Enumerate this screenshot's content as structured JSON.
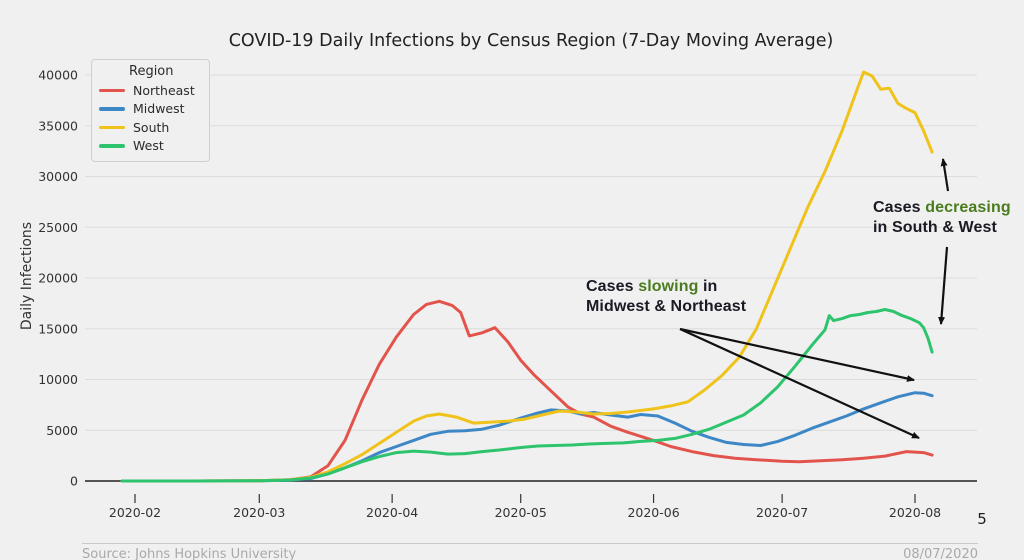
{
  "chart_data": {
    "type": "line",
    "title": "COVID-19 Daily Infections by Census Region (7-Day Moving Average)",
    "xlabel": "",
    "ylabel": "Daily Infections",
    "ylim": [
      0,
      41000
    ],
    "grid": true,
    "legend_position": "upper left",
    "legend_title": "Region",
    "x_tick_labels": [
      "2020-02",
      "2020-03",
      "2020-04",
      "2020-05",
      "2020-06",
      "2020-07",
      "2020-08"
    ],
    "y_ticks": [
      0,
      5000,
      10000,
      15000,
      20000,
      25000,
      30000,
      35000,
      40000
    ],
    "series": [
      {
        "name": "Northeast",
        "color": "#e2544b",
        "points": [
          [
            "2020-01-29",
            0
          ],
          [
            "2020-02-15",
            0
          ],
          [
            "2020-03-01",
            30
          ],
          [
            "2020-03-08",
            120
          ],
          [
            "2020-03-13",
            400
          ],
          [
            "2020-03-17",
            1500
          ],
          [
            "2020-03-21",
            4000
          ],
          [
            "2020-03-25",
            8000
          ],
          [
            "2020-03-29",
            11500
          ],
          [
            "2020-04-02",
            14200
          ],
          [
            "2020-04-06",
            16400
          ],
          [
            "2020-04-09",
            17400
          ],
          [
            "2020-04-12",
            17700
          ],
          [
            "2020-04-15",
            17300
          ],
          [
            "2020-04-17",
            16600
          ],
          [
            "2020-04-19",
            14300
          ],
          [
            "2020-04-22",
            14600
          ],
          [
            "2020-04-25",
            15100
          ],
          [
            "2020-04-28",
            13700
          ],
          [
            "2020-05-01",
            11900
          ],
          [
            "2020-05-04",
            10500
          ],
          [
            "2020-05-08",
            8900
          ],
          [
            "2020-05-12",
            7300
          ],
          [
            "2020-05-15",
            6600
          ],
          [
            "2020-05-18",
            6300
          ],
          [
            "2020-05-22",
            5400
          ],
          [
            "2020-05-26",
            4800
          ],
          [
            "2020-06-01",
            4000
          ],
          [
            "2020-06-05",
            3400
          ],
          [
            "2020-06-10",
            2900
          ],
          [
            "2020-06-15",
            2500
          ],
          [
            "2020-06-20",
            2250
          ],
          [
            "2020-06-25",
            2100
          ],
          [
            "2020-07-01",
            1950
          ],
          [
            "2020-07-05",
            1900
          ],
          [
            "2020-07-10",
            2000
          ],
          [
            "2020-07-15",
            2100
          ],
          [
            "2020-07-20",
            2250
          ],
          [
            "2020-07-25",
            2450
          ],
          [
            "2020-07-30",
            2900
          ],
          [
            "2020-08-03",
            2800
          ],
          [
            "2020-08-05",
            2550
          ]
        ]
      },
      {
        "name": "Midwest",
        "color": "#3e87c6",
        "points": [
          [
            "2020-01-29",
            0
          ],
          [
            "2020-02-15",
            0
          ],
          [
            "2020-03-01",
            20
          ],
          [
            "2020-03-08",
            80
          ],
          [
            "2020-03-13",
            250
          ],
          [
            "2020-03-17",
            700
          ],
          [
            "2020-03-21",
            1300
          ],
          [
            "2020-03-25",
            2000
          ],
          [
            "2020-03-29",
            2800
          ],
          [
            "2020-04-02",
            3400
          ],
          [
            "2020-04-06",
            4000
          ],
          [
            "2020-04-10",
            4600
          ],
          [
            "2020-04-14",
            4900
          ],
          [
            "2020-04-18",
            4950
          ],
          [
            "2020-04-22",
            5100
          ],
          [
            "2020-04-26",
            5500
          ],
          [
            "2020-05-01",
            6200
          ],
          [
            "2020-05-05",
            6700
          ],
          [
            "2020-05-08",
            7000
          ],
          [
            "2020-05-12",
            6900
          ],
          [
            "2020-05-15",
            6600
          ],
          [
            "2020-05-18",
            6750
          ],
          [
            "2020-05-22",
            6500
          ],
          [
            "2020-05-26",
            6300
          ],
          [
            "2020-05-29",
            6550
          ],
          [
            "2020-06-02",
            6400
          ],
          [
            "2020-06-06",
            5700
          ],
          [
            "2020-06-10",
            4900
          ],
          [
            "2020-06-14",
            4300
          ],
          [
            "2020-06-18",
            3800
          ],
          [
            "2020-06-22",
            3600
          ],
          [
            "2020-06-26",
            3500
          ],
          [
            "2020-06-30",
            3900
          ],
          [
            "2020-07-04",
            4500
          ],
          [
            "2020-07-08",
            5200
          ],
          [
            "2020-07-12",
            5800
          ],
          [
            "2020-07-16",
            6400
          ],
          [
            "2020-07-20",
            7100
          ],
          [
            "2020-07-24",
            7700
          ],
          [
            "2020-07-28",
            8300
          ],
          [
            "2020-08-01",
            8700
          ],
          [
            "2020-08-03",
            8650
          ],
          [
            "2020-08-05",
            8400
          ]
        ]
      },
      {
        "name": "South",
        "color": "#efc319",
        "points": [
          [
            "2020-01-29",
            0
          ],
          [
            "2020-02-15",
            0
          ],
          [
            "2020-03-01",
            30
          ],
          [
            "2020-03-08",
            130
          ],
          [
            "2020-03-13",
            350
          ],
          [
            "2020-03-17",
            900
          ],
          [
            "2020-03-21",
            1700
          ],
          [
            "2020-03-25",
            2600
          ],
          [
            "2020-03-29",
            3700
          ],
          [
            "2020-04-02",
            4800
          ],
          [
            "2020-04-06",
            5900
          ],
          [
            "2020-04-09",
            6400
          ],
          [
            "2020-04-12",
            6600
          ],
          [
            "2020-04-16",
            6300
          ],
          [
            "2020-04-20",
            5700
          ],
          [
            "2020-04-24",
            5800
          ],
          [
            "2020-04-28",
            5900
          ],
          [
            "2020-05-02",
            6100
          ],
          [
            "2020-05-06",
            6500
          ],
          [
            "2020-05-10",
            6900
          ],
          [
            "2020-05-14",
            6800
          ],
          [
            "2020-05-18",
            6600
          ],
          [
            "2020-05-22",
            6650
          ],
          [
            "2020-05-26",
            6800
          ],
          [
            "2020-06-01",
            7100
          ],
          [
            "2020-06-05",
            7400
          ],
          [
            "2020-06-09",
            7800
          ],
          [
            "2020-06-13",
            9000
          ],
          [
            "2020-06-17",
            10400
          ],
          [
            "2020-06-21",
            12200
          ],
          [
            "2020-06-25",
            15000
          ],
          [
            "2020-06-29",
            19000
          ],
          [
            "2020-07-03",
            23000
          ],
          [
            "2020-07-07",
            27000
          ],
          [
            "2020-07-11",
            30500
          ],
          [
            "2020-07-15",
            34500
          ],
          [
            "2020-07-18",
            38000
          ],
          [
            "2020-07-20",
            40300
          ],
          [
            "2020-07-22",
            39900
          ],
          [
            "2020-07-24",
            38600
          ],
          [
            "2020-07-26",
            38700
          ],
          [
            "2020-07-28",
            37200
          ],
          [
            "2020-07-30",
            36700
          ],
          [
            "2020-08-01",
            36300
          ],
          [
            "2020-08-03",
            34500
          ],
          [
            "2020-08-05",
            32400
          ]
        ]
      },
      {
        "name": "West",
        "color": "#2dc46d",
        "points": [
          [
            "2020-01-29",
            0
          ],
          [
            "2020-02-15",
            0
          ],
          [
            "2020-03-01",
            30
          ],
          [
            "2020-03-08",
            100
          ],
          [
            "2020-03-13",
            300
          ],
          [
            "2020-03-17",
            700
          ],
          [
            "2020-03-21",
            1300
          ],
          [
            "2020-03-25",
            1900
          ],
          [
            "2020-03-29",
            2400
          ],
          [
            "2020-04-02",
            2800
          ],
          [
            "2020-04-06",
            2950
          ],
          [
            "2020-04-10",
            2850
          ],
          [
            "2020-04-14",
            2650
          ],
          [
            "2020-04-18",
            2700
          ],
          [
            "2020-04-22",
            2900
          ],
          [
            "2020-04-26",
            3050
          ],
          [
            "2020-05-01",
            3300
          ],
          [
            "2020-05-05",
            3450
          ],
          [
            "2020-05-09",
            3500
          ],
          [
            "2020-05-13",
            3550
          ],
          [
            "2020-05-17",
            3650
          ],
          [
            "2020-05-21",
            3700
          ],
          [
            "2020-05-25",
            3750
          ],
          [
            "2020-05-29",
            3900
          ],
          [
            "2020-06-02",
            4000
          ],
          [
            "2020-06-06",
            4200
          ],
          [
            "2020-06-10",
            4600
          ],
          [
            "2020-06-14",
            5100
          ],
          [
            "2020-06-18",
            5800
          ],
          [
            "2020-06-22",
            6500
          ],
          [
            "2020-06-26",
            7700
          ],
          [
            "2020-06-30",
            9300
          ],
          [
            "2020-07-04",
            11300
          ],
          [
            "2020-07-08",
            13400
          ],
          [
            "2020-07-11",
            14900
          ],
          [
            "2020-07-12",
            16300
          ],
          [
            "2020-07-13",
            15800
          ],
          [
            "2020-07-15",
            16000
          ],
          [
            "2020-07-17",
            16300
          ],
          [
            "2020-07-19",
            16400
          ],
          [
            "2020-07-21",
            16600
          ],
          [
            "2020-07-23",
            16700
          ],
          [
            "2020-07-25",
            16900
          ],
          [
            "2020-07-27",
            16700
          ],
          [
            "2020-07-29",
            16300
          ],
          [
            "2020-07-31",
            16000
          ],
          [
            "2020-08-02",
            15600
          ],
          [
            "2020-08-03",
            15100
          ],
          [
            "2020-08-04",
            14100
          ],
          [
            "2020-08-05",
            12700
          ]
        ]
      }
    ]
  },
  "annotations": {
    "slowing": {
      "prefix": "Cases ",
      "highlight": "slowing",
      "suffix": " in",
      "line2": "Midwest & Northeast"
    },
    "decreasing": {
      "prefix": "Cases ",
      "highlight": "decreasing",
      "line2": "in South & West"
    }
  },
  "footer": {
    "source": "Source: Johns Hopkins University",
    "date": "08/07/2020",
    "page_number": "5"
  },
  "colors": {
    "background": "#f0f0f0",
    "grid": "#dcdcdc",
    "zero_line": "#3f3f3f",
    "tick_text": "#333333",
    "annotation_text": "#1a1a24",
    "annotation_highlight": "#4a7c1f",
    "arrow": "#111111",
    "footer_text": "#a9a9a9"
  }
}
